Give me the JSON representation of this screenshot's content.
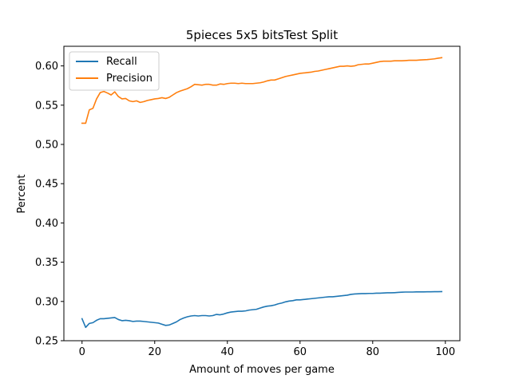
{
  "chart_data": {
    "type": "line",
    "title": "5pieces 5x5 bitsTest Split",
    "xlabel": "Amount of moves per game",
    "ylabel": "Percent",
    "xlim": [
      -5,
      104
    ],
    "ylim": [
      0.25,
      0.625
    ],
    "xticks": [
      0,
      20,
      40,
      60,
      80,
      100
    ],
    "yticks": [
      0.25,
      0.3,
      0.35,
      0.4,
      0.45,
      0.5,
      0.55,
      0.6
    ],
    "xtick_labels": [
      "0",
      "20",
      "40",
      "60",
      "80",
      "100"
    ],
    "ytick_labels": [
      "0.25",
      "0.30",
      "0.35",
      "0.40",
      "0.45",
      "0.50",
      "0.55",
      "0.60"
    ],
    "legend_position": "upper-left",
    "grid": false,
    "series": [
      {
        "name": "Recall",
        "color": "#1f77b4",
        "x": [
          0,
          1,
          2,
          3,
          4,
          5,
          6,
          7,
          8,
          9,
          10,
          11,
          12,
          13,
          14,
          15,
          16,
          17,
          18,
          19,
          20,
          21,
          22,
          23,
          24,
          25,
          26,
          27,
          28,
          29,
          30,
          31,
          32,
          33,
          34,
          35,
          36,
          37,
          38,
          39,
          40,
          41,
          42,
          43,
          44,
          45,
          46,
          47,
          48,
          49,
          50,
          51,
          52,
          53,
          54,
          55,
          56,
          57,
          58,
          59,
          60,
          61,
          62,
          63,
          64,
          65,
          66,
          67,
          68,
          69,
          70,
          71,
          72,
          73,
          74,
          75,
          76,
          77,
          78,
          79,
          80,
          81,
          82,
          83,
          84,
          85,
          86,
          87,
          88,
          89,
          90,
          91,
          92,
          93,
          94,
          95,
          96,
          97,
          98,
          99
        ],
        "y": [
          0.278,
          0.267,
          0.272,
          0.273,
          0.276,
          0.278,
          0.278,
          0.2785,
          0.279,
          0.2795,
          0.277,
          0.2755,
          0.276,
          0.2755,
          0.2745,
          0.275,
          0.275,
          0.2745,
          0.274,
          0.2735,
          0.273,
          0.2725,
          0.271,
          0.2695,
          0.27,
          0.272,
          0.274,
          0.277,
          0.279,
          0.2805,
          0.2815,
          0.282,
          0.2815,
          0.282,
          0.282,
          0.2815,
          0.282,
          0.2835,
          0.283,
          0.284,
          0.2855,
          0.2865,
          0.287,
          0.2875,
          0.2875,
          0.288,
          0.289,
          0.2895,
          0.29,
          0.2915,
          0.293,
          0.294,
          0.2945,
          0.2955,
          0.297,
          0.298,
          0.2995,
          0.3005,
          0.301,
          0.302,
          0.302,
          0.3025,
          0.303,
          0.3035,
          0.304,
          0.3045,
          0.305,
          0.3055,
          0.306,
          0.306,
          0.3065,
          0.307,
          0.3075,
          0.308,
          0.309,
          0.3095,
          0.3098,
          0.31,
          0.31,
          0.3102,
          0.3102,
          0.3105,
          0.3105,
          0.3108,
          0.311,
          0.311,
          0.3112,
          0.3115,
          0.3118,
          0.312,
          0.312,
          0.312,
          0.3122,
          0.3122,
          0.3122,
          0.3123,
          0.3123,
          0.3124,
          0.3124,
          0.3125
        ]
      },
      {
        "name": "Precision",
        "color": "#ff7f0e",
        "x": [
          0,
          1,
          2,
          3,
          4,
          5,
          6,
          7,
          8,
          9,
          10,
          11,
          12,
          13,
          14,
          15,
          16,
          17,
          18,
          19,
          20,
          21,
          22,
          23,
          24,
          25,
          26,
          27,
          28,
          29,
          30,
          31,
          32,
          33,
          34,
          35,
          36,
          37,
          38,
          39,
          40,
          41,
          42,
          43,
          44,
          45,
          46,
          47,
          48,
          49,
          50,
          51,
          52,
          53,
          54,
          55,
          56,
          57,
          58,
          59,
          60,
          61,
          62,
          63,
          64,
          65,
          66,
          67,
          68,
          69,
          70,
          71,
          72,
          73,
          74,
          75,
          76,
          77,
          78,
          79,
          80,
          81,
          82,
          83,
          84,
          85,
          86,
          87,
          88,
          89,
          90,
          91,
          92,
          93,
          94,
          95,
          96,
          97,
          98,
          99
        ],
        "y": [
          0.527,
          0.527,
          0.544,
          0.546,
          0.558,
          0.566,
          0.5675,
          0.5655,
          0.563,
          0.567,
          0.561,
          0.558,
          0.5585,
          0.5555,
          0.5545,
          0.5555,
          0.5535,
          0.5545,
          0.556,
          0.557,
          0.558,
          0.5585,
          0.5595,
          0.5585,
          0.56,
          0.563,
          0.566,
          0.568,
          0.5695,
          0.571,
          0.5735,
          0.5765,
          0.576,
          0.5755,
          0.5765,
          0.5765,
          0.5755,
          0.5755,
          0.577,
          0.5765,
          0.5775,
          0.578,
          0.578,
          0.5775,
          0.578,
          0.5775,
          0.5775,
          0.5775,
          0.578,
          0.5785,
          0.5795,
          0.581,
          0.582,
          0.582,
          0.5835,
          0.585,
          0.5865,
          0.5875,
          0.5885,
          0.5895,
          0.5905,
          0.591,
          0.5915,
          0.592,
          0.593,
          0.5935,
          0.5945,
          0.5955,
          0.5965,
          0.5975,
          0.5985,
          0.5995,
          0.5995,
          0.6,
          0.5995,
          0.6,
          0.6015,
          0.602,
          0.6025,
          0.6025,
          0.6035,
          0.6045,
          0.6055,
          0.606,
          0.606,
          0.606,
          0.6065,
          0.6065,
          0.6065,
          0.6068,
          0.6072,
          0.6072,
          0.6072,
          0.6075,
          0.6078,
          0.608,
          0.6085,
          0.609,
          0.6098,
          0.6105
        ]
      }
    ]
  }
}
